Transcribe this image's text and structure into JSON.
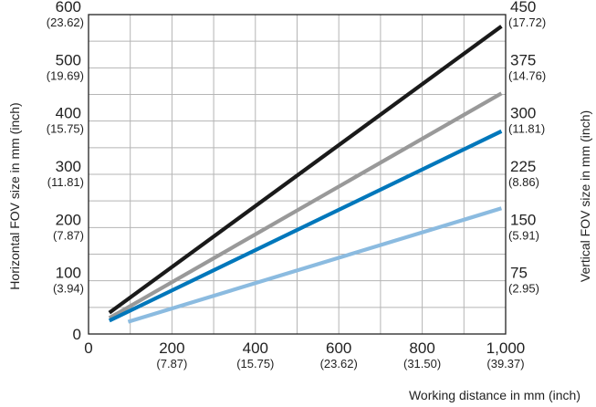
{
  "chart_data": {
    "type": "line",
    "title": "",
    "xlabel": "Working distance in mm (inch)",
    "ylabel": "Horizontal FOV size in mm (inch)",
    "y2label": "Vertical FOV size in mm (inch)",
    "xlim": [
      0,
      1000
    ],
    "ylim": [
      0,
      600
    ],
    "y2lim": [
      0,
      450
    ],
    "grid": true,
    "x_ticks": [
      {
        "value": 0,
        "label": "0",
        "sub": ""
      },
      {
        "value": 200,
        "label": "200",
        "sub": "(7.87)"
      },
      {
        "value": 400,
        "label": "400",
        "sub": "(15.75)"
      },
      {
        "value": 600,
        "label": "600",
        "sub": "(23.62)"
      },
      {
        "value": 800,
        "label": "800",
        "sub": "(31.50)"
      },
      {
        "value": 1000,
        "label": "1,000",
        "sub": "(39.37)"
      }
    ],
    "y_ticks": [
      {
        "value": 0,
        "label": "0",
        "sub": ""
      },
      {
        "value": 100,
        "label": "100",
        "sub": "(3.94)"
      },
      {
        "value": 200,
        "label": "200",
        "sub": "(7.87)"
      },
      {
        "value": 300,
        "label": "300",
        "sub": "(11.81)"
      },
      {
        "value": 400,
        "label": "400",
        "sub": "(15.75)"
      },
      {
        "value": 500,
        "label": "500",
        "sub": "(19.69)"
      },
      {
        "value": 600,
        "label": "600",
        "sub": "(23.62)"
      }
    ],
    "y2_ticks": [
      {
        "value": 75,
        "label": "75",
        "sub": "(2.95)"
      },
      {
        "value": 150,
        "label": "150",
        "sub": "(5.91)"
      },
      {
        "value": 225,
        "label": "225",
        "sub": "(8.86)"
      },
      {
        "value": 300,
        "label": "300",
        "sub": "(11.81)"
      },
      {
        "value": 375,
        "label": "375",
        "sub": "(14.76)"
      },
      {
        "value": 450,
        "label": "450",
        "sub": "(17.72)"
      }
    ],
    "series": [
      {
        "color": "#1a1a1a",
        "x": [
          50,
          990
        ],
        "y": [
          40,
          578
        ]
      },
      {
        "color": "#999999",
        "x": [
          50,
          990
        ],
        "y": [
          30,
          452
        ]
      },
      {
        "color": "#0077bb",
        "x": [
          50,
          990
        ],
        "y": [
          25,
          381
        ]
      },
      {
        "color": "#8bbbe0",
        "x": [
          95,
          990
        ],
        "y": [
          23,
          236
        ]
      }
    ]
  }
}
